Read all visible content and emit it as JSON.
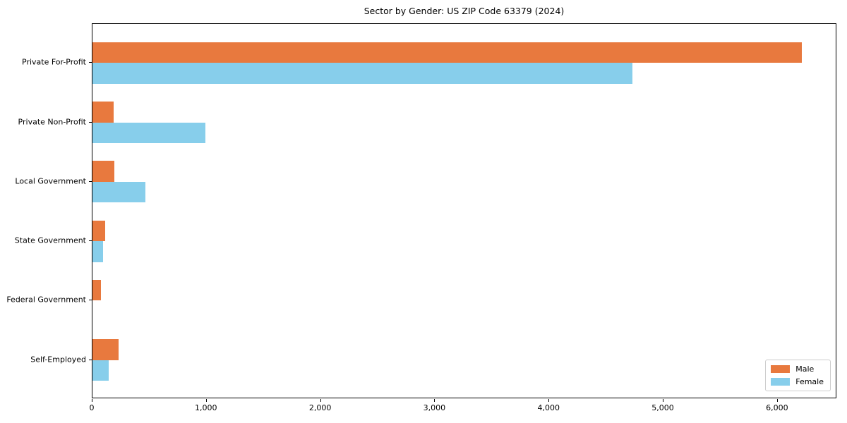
{
  "title": "Sector by Gender: US ZIP Code 63379 (2024)",
  "chart_data": {
    "type": "bar",
    "orientation": "horizontal",
    "title": "Sector by Gender: US ZIP Code 63379 (2024)",
    "categories": [
      "Private For-Profit",
      "Private Non-Profit",
      "Local Government",
      "State Government",
      "Federal Government",
      "Self-Employed"
    ],
    "series": [
      {
        "name": "Male",
        "color": "#e8793e",
        "values": [
          6210,
          185,
          192,
          113,
          72,
          231
        ]
      },
      {
        "name": "Female",
        "color": "#87ceeb",
        "values": [
          4730,
          990,
          465,
          91,
          0,
          144
        ]
      }
    ],
    "xlabel": "",
    "ylabel": "",
    "xlim": [
      0,
      6520
    ],
    "x_ticks": [
      0,
      1000,
      2000,
      3000,
      4000,
      5000,
      6000
    ],
    "x_tick_labels": [
      "0",
      "1,000",
      "2,000",
      "3,000",
      "4,000",
      "5,000",
      "6,000"
    ],
    "grid": false,
    "legend": {
      "position": "lower right",
      "entries": [
        "Male",
        "Female"
      ]
    }
  }
}
